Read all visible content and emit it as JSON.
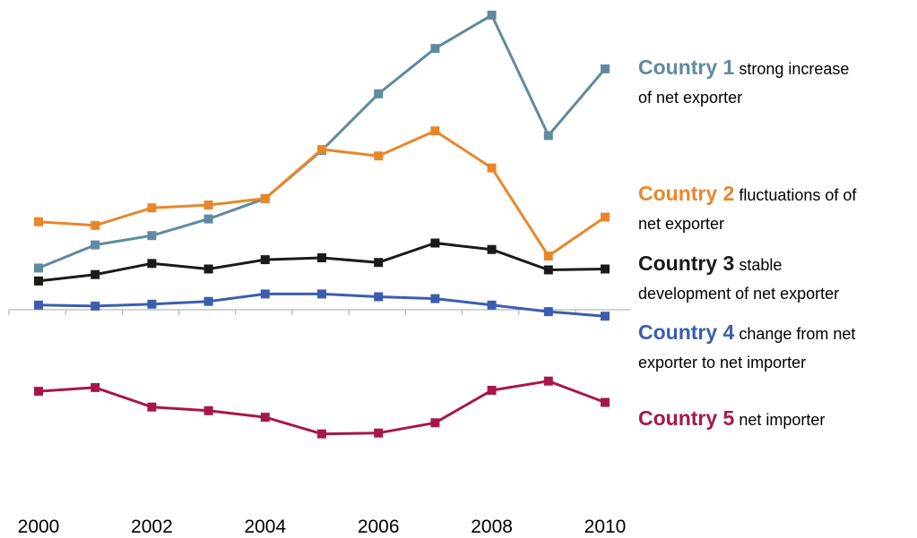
{
  "chart_data": {
    "type": "line",
    "x": [
      2000,
      2001,
      2002,
      2003,
      2004,
      2005,
      2006,
      2007,
      2008,
      2009,
      2010
    ],
    "x_tick_labels": [
      "2000",
      "2002",
      "2004",
      "2006",
      "2008",
      "2010"
    ],
    "ylim": [
      -150,
      330
    ],
    "grid": false,
    "series": [
      {
        "key": "c1",
        "color": "#5f8aa0",
        "values": [
          45,
          70,
          80,
          98,
          120,
          172,
          233,
          282,
          318,
          188,
          260
        ]
      },
      {
        "key": "c2",
        "color": "#e8872a",
        "values": [
          95,
          91,
          110,
          113,
          120,
          173,
          166,
          193,
          153,
          58,
          100
        ]
      },
      {
        "key": "c3",
        "color": "#1a1a1a",
        "values": [
          31,
          38,
          50,
          44,
          54,
          56,
          51,
          72,
          65,
          43,
          44
        ]
      },
      {
        "key": "c4",
        "color": "#3b5db0",
        "values": [
          5,
          4,
          6,
          9,
          17,
          17,
          14,
          12,
          5,
          -2,
          -7
        ]
      },
      {
        "key": "c5",
        "color": "#a8174a",
        "values": [
          -88,
          -84,
          -105,
          -109,
          -116,
          -134,
          -133,
          -122,
          -87,
          -77,
          -100
        ]
      }
    ]
  },
  "annotations": [
    {
      "key": "c1",
      "name": "Country 1",
      "desc1": " strong increase",
      "desc2": "of net exporter"
    },
    {
      "key": "c2",
      "name": "Country 2",
      "desc1": " fluctuations of of",
      "desc2": "net exporter"
    },
    {
      "key": "c3",
      "name": "Country 3",
      "desc1": " stable",
      "desc2": "development of net exporter"
    },
    {
      "key": "c4",
      "name": "Country 4",
      "desc1": " change from net",
      "desc2": "exporter to net importer"
    },
    {
      "key": "c5",
      "name": "Country 5",
      "desc1": " net importer",
      "desc2": ""
    }
  ]
}
